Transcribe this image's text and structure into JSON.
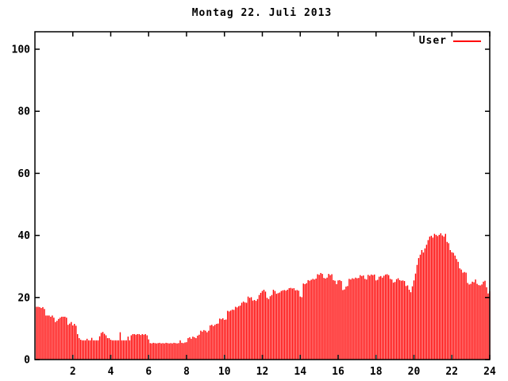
{
  "title": "Montag 22. Juli 2013",
  "legend": {
    "label": "User"
  },
  "colors": {
    "series": "#ff0000",
    "axis": "#000000",
    "background": "#ffffff",
    "text": "#000000"
  },
  "axes": {
    "x_ticks": [
      2,
      4,
      6,
      8,
      10,
      12,
      14,
      16,
      18,
      20,
      22,
      24
    ],
    "y_ticks": [
      0,
      20,
      40,
      60,
      80,
      100
    ]
  },
  "chart_data": {
    "type": "bar",
    "title": "Montag 22. Juli 2013",
    "xlabel": "",
    "ylabel": "",
    "x_unit": "hour of day",
    "interval_minutes": 5,
    "xlim": [
      0,
      24
    ],
    "ylim": [
      0,
      105
    ],
    "grid": false,
    "legend_position": "top-right",
    "series": [
      {
        "name": "User",
        "color": "#ff0000",
        "values": [
          17.0,
          17.0,
          16.9,
          16.6,
          16.9,
          16.3,
          14.2,
          14.2,
          14.2,
          13.8,
          14.2,
          13.5,
          12.1,
          12.5,
          13.1,
          13.5,
          13.8,
          13.8,
          13.8,
          13.5,
          11.2,
          11.6,
          12.1,
          11.0,
          11.5,
          10.9,
          8.2,
          6.9,
          6.4,
          6.2,
          6.2,
          6.2,
          6.7,
          6.2,
          6.2,
          7.0,
          6.2,
          6.2,
          6.2,
          6.2,
          7.5,
          8.6,
          8.9,
          8.3,
          7.8,
          6.9,
          6.9,
          6.4,
          6.2,
          6.2,
          6.2,
          6.2,
          6.2,
          8.8,
          6.2,
          6.2,
          6.2,
          6.2,
          7.4,
          6.2,
          7.8,
          8.2,
          8.2,
          8.0,
          8.2,
          8.2,
          7.9,
          8.2,
          8.0,
          8.2,
          7.8,
          6.5,
          5.3,
          5.2,
          5.4,
          5.3,
          5.2,
          5.3,
          5.4,
          5.2,
          5.3,
          5.2,
          5.4,
          5.3,
          5.2,
          5.3,
          5.2,
          5.4,
          5.3,
          5.2,
          5.3,
          6.2,
          5.4,
          5.3,
          5.5,
          5.6,
          6.9,
          7.2,
          6.7,
          7.4,
          7.2,
          6.9,
          7.7,
          8.0,
          9.3,
          9.0,
          9.5,
          9.3,
          8.8,
          9.3,
          11.0,
          11.2,
          10.8,
          11.2,
          11.5,
          11.6,
          13.2,
          13.0,
          13.3,
          12.8,
          12.9,
          15.7,
          15.5,
          15.8,
          16.1,
          16.0,
          17.0,
          16.8,
          17.2,
          17.4,
          18.3,
          18.7,
          18.4,
          18.3,
          20.3,
          19.9,
          20.1,
          19.0,
          19.2,
          18.9,
          19.5,
          20.8,
          21.5,
          22.1,
          22.5,
          21.9,
          19.9,
          19.5,
          20.4,
          20.8,
          22.5,
          22.1,
          21.2,
          21.4,
          21.6,
          22.1,
          22.3,
          22.4,
          22.2,
          22.5,
          23.0,
          23.1,
          22.9,
          23.0,
          22.3,
          22.4,
          22.2,
          20.3,
          20.1,
          24.5,
          24.3,
          24.6,
          25.6,
          25.4,
          25.7,
          26.0,
          25.8,
          26.1,
          27.5,
          27.3,
          27.9,
          27.6,
          26.3,
          26.1,
          26.4,
          27.6,
          27.2,
          27.5,
          25.6,
          25.4,
          24.3,
          25.5,
          25.6,
          25.3,
          22.4,
          22.6,
          23.5,
          23.7,
          26.0,
          25.8,
          26.2,
          26.0,
          26.4,
          26.2,
          26.3,
          27.2,
          26.9,
          27.1,
          26.0,
          25.8,
          27.3,
          27.0,
          27.4,
          27.2,
          27.4,
          25.5,
          25.7,
          26.7,
          26.9,
          26.4,
          27.0,
          27.4,
          27.5,
          27.2,
          26.0,
          25.8,
          24.8,
          25.0,
          25.9,
          26.2,
          25.6,
          25.4,
          25.5,
          25.3,
          23.7,
          23.9,
          22.5,
          21.7,
          23.6,
          25.5,
          27.7,
          30.5,
          32.7,
          33.8,
          35.3,
          34.5,
          35.8,
          37.0,
          38.5,
          39.6,
          39.9,
          39.3,
          40.5,
          40.2,
          39.8,
          40.2,
          40.7,
          40.0,
          39.6,
          40.5,
          37.9,
          37.5,
          35.3,
          34.6,
          34.4,
          33.5,
          32.4,
          31.5,
          29.4,
          29.0,
          28.0,
          28.2,
          28.0,
          24.7,
          24.2,
          24.4,
          25.1,
          24.9,
          25.8,
          24.4,
          24.0,
          23.9,
          24.2,
          25.1,
          25.4,
          23.3,
          21.3,
          22.0
        ]
      }
    ]
  }
}
